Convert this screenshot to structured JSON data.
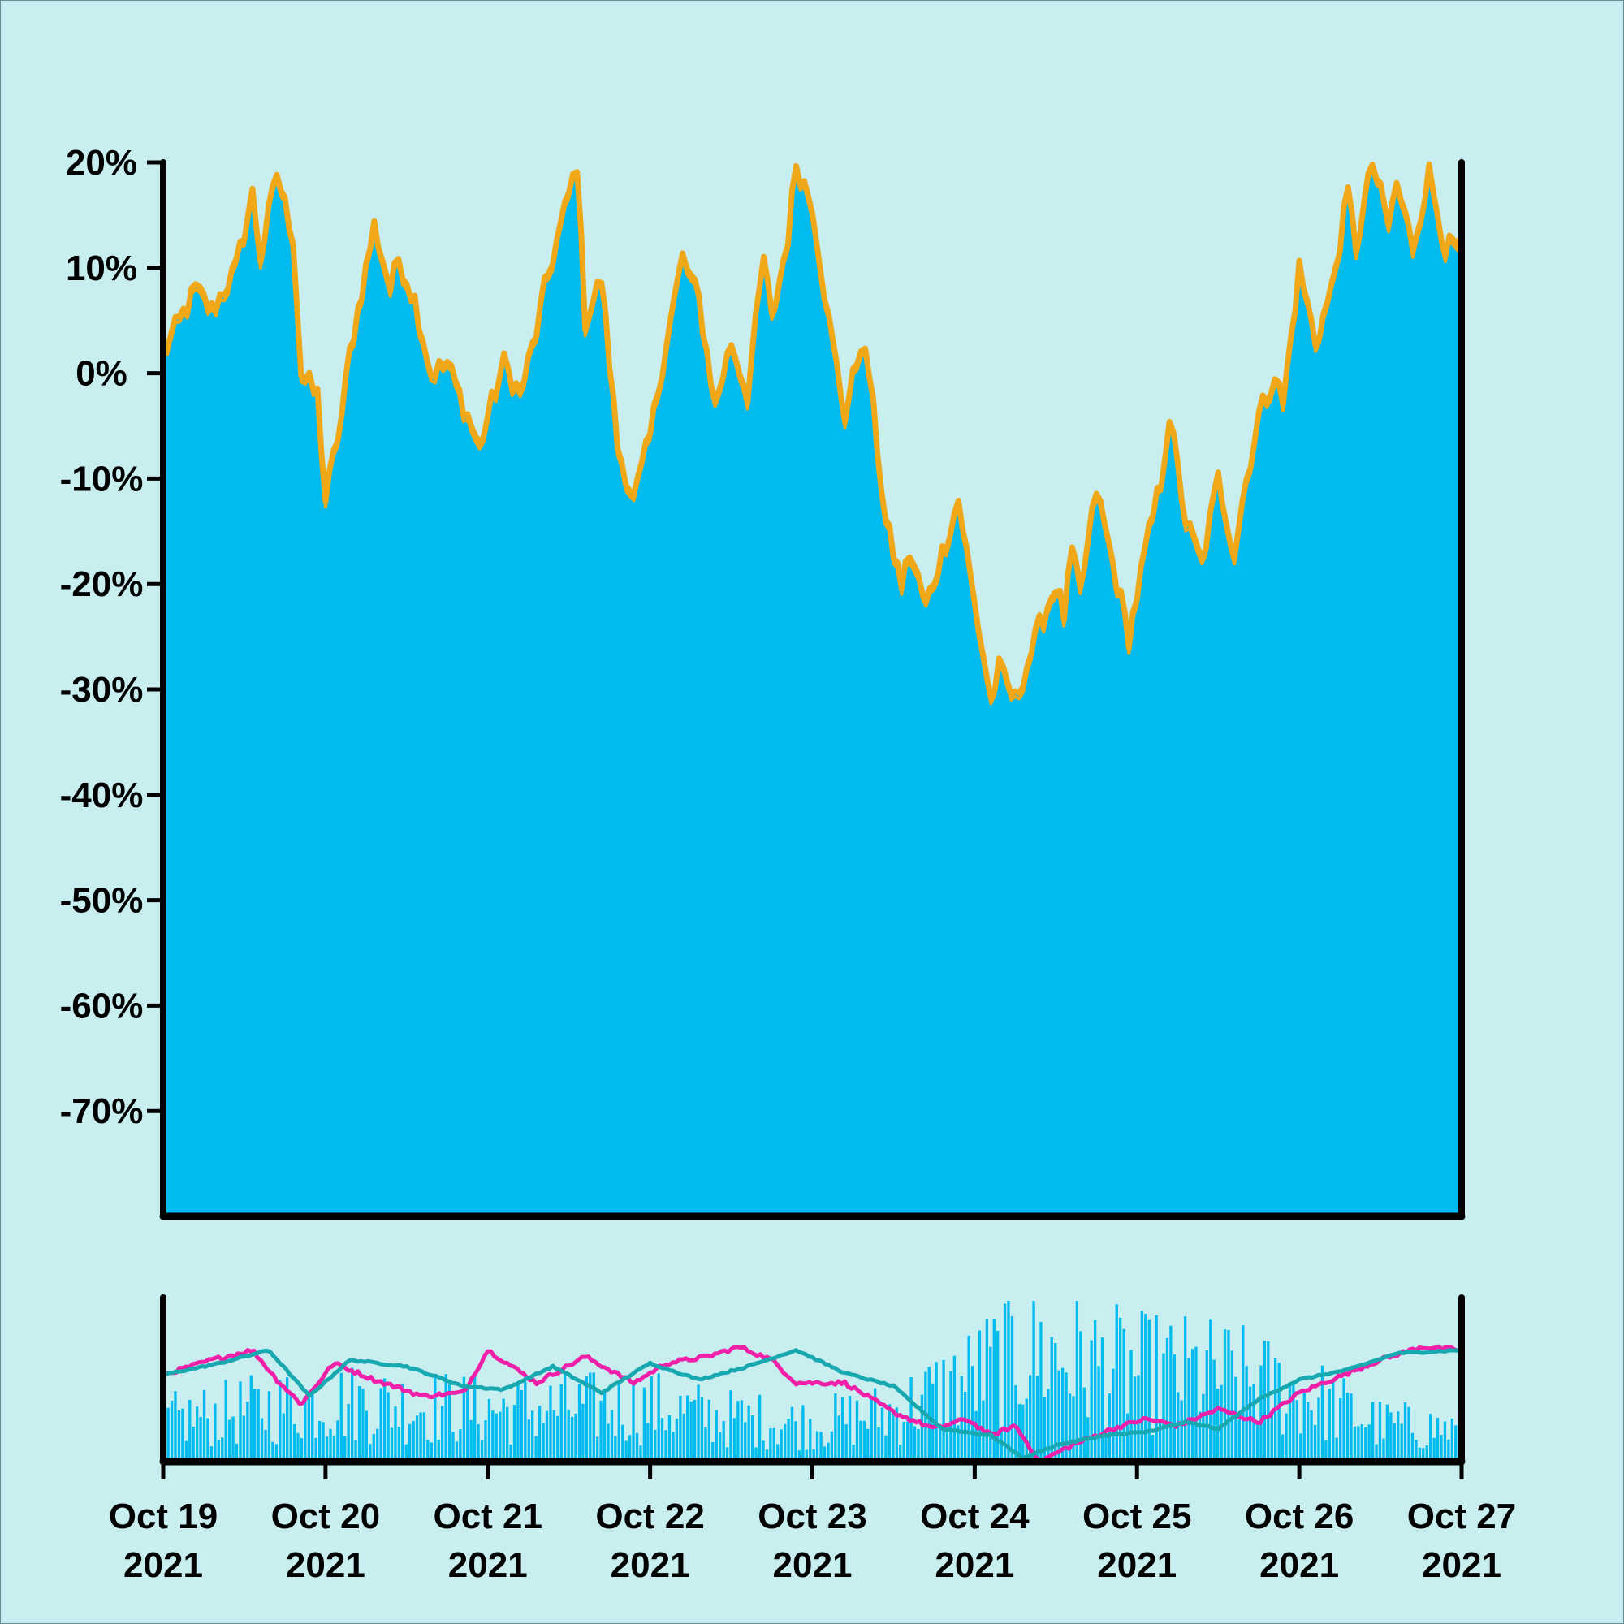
{
  "chart_data": [
    {
      "type": "area",
      "panel": "price",
      "title": "",
      "xlabel": "",
      "ylabel": "",
      "ylim": [
        -80,
        20
      ],
      "yticks": [
        {
          "value": 20,
          "label": "20%"
        },
        {
          "value": 10,
          "label": "10%"
        },
        {
          "value": 0,
          "label": "0%"
        },
        {
          "value": -10,
          "label": "-10%"
        },
        {
          "value": -20,
          "label": "-20%"
        },
        {
          "value": -30,
          "label": "-30%"
        },
        {
          "value": -40,
          "label": "-40%"
        },
        {
          "value": -50,
          "label": "-50%"
        },
        {
          "value": -60,
          "label": "-60%"
        },
        {
          "value": -70,
          "label": "-70%"
        }
      ],
      "xlim": [
        "2021-10-19",
        "2021-10-27"
      ],
      "grid": false,
      "colors": {
        "fill": "#00bbf0",
        "band": "#f0a818"
      },
      "series": [
        {
          "x_days": [
            0,
            0.1,
            0.2,
            0.3,
            0.45,
            0.55,
            0.6,
            0.7,
            0.8,
            0.85,
            0.95,
            1.0,
            1.1,
            1.15,
            1.25,
            1.3,
            1.4,
            1.45,
            1.55,
            1.65,
            1.75,
            1.85,
            1.95,
            2.0,
            2.1,
            2.2,
            2.3,
            2.35,
            2.45,
            2.55,
            2.6,
            2.7,
            2.8,
            2.9,
            3.0,
            3.1,
            3.2,
            3.3,
            3.4,
            3.5,
            3.6,
            3.7,
            3.75,
            3.85,
            3.9,
            4.0,
            4.1,
            4.2,
            4.3,
            4.35,
            4.45,
            4.55,
            4.6,
            4.7,
            4.8,
            4.9,
            5.0,
            5.1,
            5.15,
            5.25,
            5.4,
            5.5,
            5.55,
            5.6,
            5.65,
            5.75,
            5.85,
            5.95,
            6.05,
            6.15,
            6.2,
            6.3,
            6.4,
            6.5,
            6.6,
            6.65,
            6.75,
            6.85,
            6.9,
            7.0,
            7.1,
            7.2,
            7.3,
            7.35,
            7.45,
            7.55,
            7.6,
            7.7,
            7.8,
            7.9,
            8.0
          ],
          "values": [
            2,
            5,
            8,
            6,
            10,
            17,
            11,
            19,
            13,
            0,
            -2,
            -12,
            -4,
            2,
            10,
            14,
            8,
            11,
            7,
            0,
            1,
            -3,
            -7,
            -4,
            1,
            -2,
            4,
            8,
            14,
            20,
            5,
            9,
            -7,
            -12,
            -6,
            3,
            11,
            7,
            -3,
            3,
            -2,
            11,
            5,
            13,
            20,
            16,
            5,
            -4,
            3,
            0,
            -14,
            -20,
            -17,
            -22,
            -17,
            -12,
            -22,
            -31,
            -28,
            -31,
            -24,
            -20,
            -23,
            -17,
            -21,
            -11,
            -18,
            -25,
            -17,
            -10,
            -4,
            -14,
            -18,
            -10,
            -17,
            -12,
            -4,
            0,
            -3,
            10,
            3,
            8,
            17,
            12,
            20,
            14,
            18,
            12,
            19,
            12,
            12
          ]
        }
      ]
    },
    {
      "type": "bar",
      "panel": "volume",
      "title": "",
      "xlabel": "",
      "ylabel": "",
      "ylim": [
        0,
        100
      ],
      "colors": {
        "bars": "#00bbf0",
        "ma_fast": "#f020a8",
        "ma_slow": "#18a8b0"
      },
      "x_days_keypoints": [
        0,
        1,
        2,
        3,
        3.5,
        4,
        4.5,
        5,
        5.3,
        5.6,
        6,
        6.5,
        7,
        7.5,
        8
      ],
      "volume_keypoints": [
        28,
        42,
        36,
        38,
        30,
        26,
        34,
        58,
        78,
        70,
        62,
        60,
        48,
        26,
        22
      ],
      "ma_fast_keypoints_days": [
        0,
        0.3,
        0.55,
        0.7,
        0.85,
        1.05,
        1.3,
        1.6,
        1.85,
        2.0,
        2.3,
        2.6,
        2.9,
        3.1,
        3.35,
        3.55,
        3.75,
        3.9,
        4.2,
        4.5,
        4.75,
        4.95,
        5.1,
        5.25,
        5.4,
        5.6,
        5.85,
        6.05,
        6.25,
        6.5,
        6.75,
        7.0,
        7.25,
        7.5,
        7.75,
        8.0
      ],
      "ma_fast_values": [
        53,
        62,
        68,
        50,
        35,
        60,
        50,
        40,
        42,
        68,
        48,
        64,
        48,
        60,
        64,
        70,
        62,
        48,
        48,
        30,
        20,
        26,
        16,
        22,
        0,
        10,
        20,
        26,
        22,
        32,
        24,
        42,
        52,
        62,
        70,
        68
      ],
      "ma_slow_keypoints_days": [
        0,
        0.35,
        0.65,
        0.9,
        1.15,
        1.5,
        1.85,
        2.1,
        2.4,
        2.7,
        3.0,
        3.3,
        3.6,
        3.9,
        4.2,
        4.5,
        4.8,
        5.1,
        5.3,
        5.5,
        5.8,
        6.05,
        6.3,
        6.5,
        6.75,
        7.0,
        7.3,
        7.6,
        8.0
      ],
      "ma_slow_values": [
        53,
        60,
        68,
        40,
        62,
        58,
        46,
        44,
        58,
        42,
        60,
        50,
        58,
        68,
        54,
        46,
        20,
        16,
        2,
        10,
        16,
        18,
        24,
        20,
        38,
        50,
        56,
        66,
        68
      ]
    }
  ],
  "x_axis": {
    "ticks": [
      {
        "day": 0,
        "line1": "Oct 19",
        "line2": "2021"
      },
      {
        "day": 1,
        "line1": "Oct 20",
        "line2": "2021"
      },
      {
        "day": 2,
        "line1": "Oct 21",
        "line2": "2021"
      },
      {
        "day": 3,
        "line1": "Oct 22",
        "line2": "2021"
      },
      {
        "day": 4,
        "line1": "Oct 23",
        "line2": "2021"
      },
      {
        "day": 5,
        "line1": "Oct 24",
        "line2": "2021"
      },
      {
        "day": 6,
        "line1": "Oct 25",
        "line2": "2021"
      },
      {
        "day": 7,
        "line1": "Oct 26",
        "line2": "2021"
      },
      {
        "day": 8,
        "line1": "Oct 27",
        "line2": "2021"
      }
    ]
  }
}
